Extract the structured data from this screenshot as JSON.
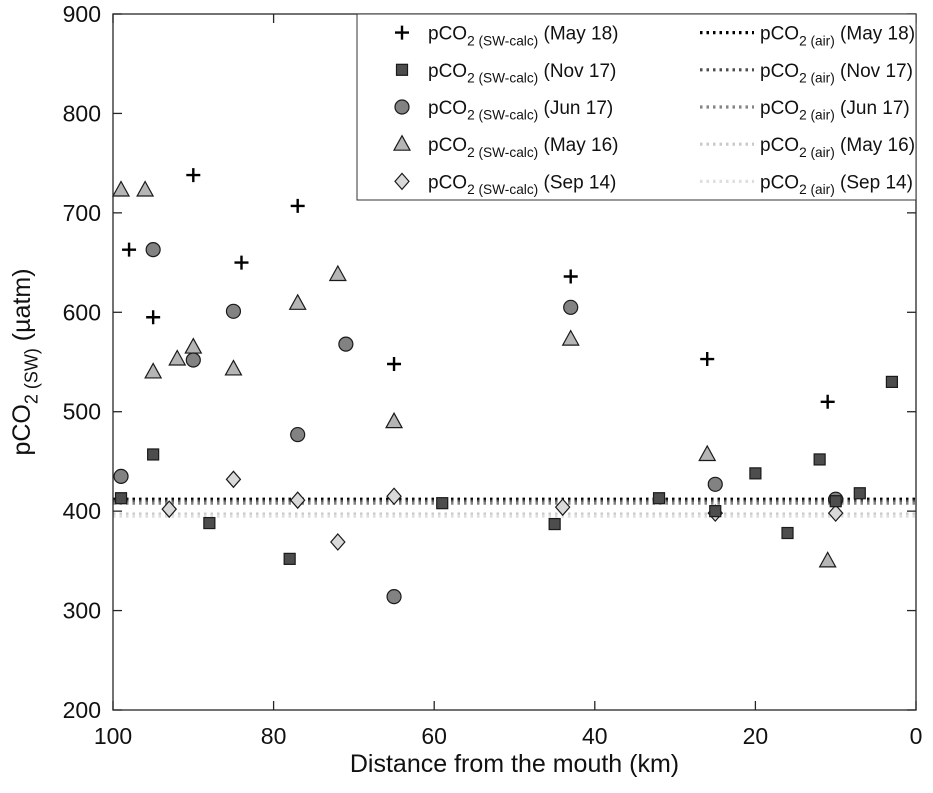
{
  "figure": {
    "background": "#ffffff",
    "axis_color": "#262626",
    "text_color": "#111111"
  },
  "chart_data": {
    "type": "scatter",
    "title": "",
    "xlabel": "Distance from the mouth (km)",
    "ylabel": {
      "pre": "pCO",
      "sub": "2 (SW)",
      "post": " (µatm)"
    },
    "x_axis": {
      "min": 0,
      "max": 100,
      "reversed": true,
      "ticks": [
        100,
        80,
        60,
        40,
        20,
        0
      ]
    },
    "y_axis": {
      "min": 200,
      "max": 900,
      "ticks": [
        200,
        300,
        400,
        500,
        600,
        700,
        800,
        900
      ]
    },
    "grid": false,
    "legend_position": "top-right-inside",
    "series": [
      {
        "id": "sw-calc-may18",
        "label": {
          "pre": "pCO",
          "sub": "2 (SW-calc)",
          "post": " (May 18)"
        },
        "marker": "plus",
        "color": "#000000",
        "edge": "#000000",
        "points": [
          [
            98,
            663
          ],
          [
            95,
            595
          ],
          [
            90,
            738
          ],
          [
            84,
            650
          ],
          [
            77,
            707
          ],
          [
            65,
            548
          ],
          [
            43,
            636
          ],
          [
            26,
            553
          ],
          [
            11,
            510
          ]
        ]
      },
      {
        "id": "sw-calc-nov17",
        "label": {
          "pre": "pCO",
          "sub": "2 (SW-calc)",
          "post": " (Nov 17)"
        },
        "marker": "square",
        "color": "#4d4d4d",
        "edge": "#1a1a1a",
        "points": [
          [
            99,
            413
          ],
          [
            95,
            457
          ],
          [
            88,
            388
          ],
          [
            78,
            352
          ],
          [
            59,
            408
          ],
          [
            45,
            387
          ],
          [
            32,
            413
          ],
          [
            25,
            400
          ],
          [
            20,
            438
          ],
          [
            16,
            378
          ],
          [
            12,
            452
          ],
          [
            10,
            410
          ],
          [
            7,
            418
          ],
          [
            3,
            530
          ]
        ]
      },
      {
        "id": "sw-calc-jun17",
        "label": {
          "pre": "pCO",
          "sub": "2 (SW-calc)",
          "post": " (Jun 17)"
        },
        "marker": "circle",
        "color": "#828282",
        "edge": "#1a1a1a",
        "points": [
          [
            99,
            435
          ],
          [
            95,
            663
          ],
          [
            90,
            552
          ],
          [
            85,
            601
          ],
          [
            77,
            477
          ],
          [
            71,
            568
          ],
          [
            65,
            314
          ],
          [
            43,
            605
          ],
          [
            25,
            427
          ],
          [
            10,
            412
          ]
        ]
      },
      {
        "id": "sw-calc-may16",
        "label": {
          "pre": "pCO",
          "sub": "2 (SW-calc)",
          "post": " (May 16)"
        },
        "marker": "triangle",
        "color": "#b5b5b5",
        "edge": "#1a1a1a",
        "points": [
          [
            99,
            723
          ],
          [
            96,
            723
          ],
          [
            95,
            540
          ],
          [
            92,
            553
          ],
          [
            90,
            565
          ],
          [
            85,
            543
          ],
          [
            77,
            609
          ],
          [
            72,
            638
          ],
          [
            65,
            490
          ],
          [
            43,
            573
          ],
          [
            26,
            457
          ],
          [
            11,
            350
          ]
        ]
      },
      {
        "id": "sw-calc-sep14",
        "label": {
          "pre": "pCO",
          "sub": "2 (SW-calc)",
          "post": " (Sep 14)"
        },
        "marker": "diamond",
        "color": "#d9d9d9",
        "edge": "#1a1a1a",
        "points": [
          [
            93,
            402
          ],
          [
            85,
            432
          ],
          [
            77,
            411
          ],
          [
            72,
            369
          ],
          [
            65,
            415
          ],
          [
            44,
            404
          ],
          [
            25,
            398
          ],
          [
            10,
            398
          ]
        ]
      }
    ],
    "air_lines": [
      {
        "id": "air-may18",
        "label": {
          "pre": "pCO",
          "sub": "2 (air)",
          "post": " (May 18)"
        },
        "value": 412,
        "color": "#000000"
      },
      {
        "id": "air-nov17",
        "label": {
          "pre": "pCO",
          "sub": "2 (air)",
          "post": " (Nov 17)"
        },
        "value": 410,
        "color": "#4d4d4d"
      },
      {
        "id": "air-jun17",
        "label": {
          "pre": "pCO",
          "sub": "2 (air)",
          "post": " (Jun 17)"
        },
        "value": 408,
        "color": "#858585"
      },
      {
        "id": "air-may16",
        "label": {
          "pre": "pCO",
          "sub": "2 (air)",
          "post": " (May 16)"
        },
        "value": 397,
        "color": "#c9c9c9"
      },
      {
        "id": "air-sep14",
        "label": {
          "pre": "pCO",
          "sub": "2 (air)",
          "post": " (Sep 14)"
        },
        "value": 395,
        "color": "#dedede"
      }
    ]
  }
}
